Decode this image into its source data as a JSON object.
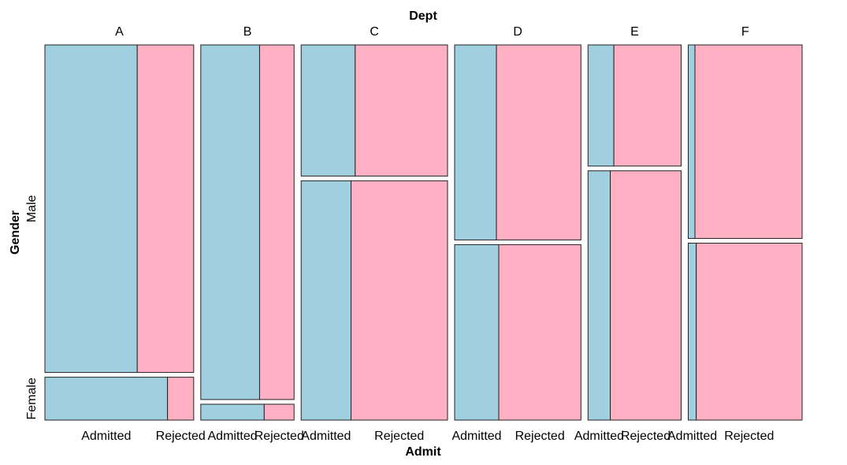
{
  "chart_data": {
    "type": "mosaic",
    "title": "Dept",
    "xlabel": "Admit",
    "ylabel": "Gender",
    "departments": [
      "A",
      "B",
      "C",
      "D",
      "E",
      "F"
    ],
    "genders": [
      "Male",
      "Female"
    ],
    "admit_levels": [
      "Admitted",
      "Rejected"
    ],
    "colors": {
      "Admitted": "#a0d0e0",
      "Rejected": "#ffb0c2"
    },
    "counts": {
      "A": {
        "Male": {
          "Admitted": 512,
          "Rejected": 313
        },
        "Female": {
          "Admitted": 89,
          "Rejected": 19
        }
      },
      "B": {
        "Male": {
          "Admitted": 353,
          "Rejected": 207
        },
        "Female": {
          "Admitted": 17,
          "Rejected": 8
        }
      },
      "C": {
        "Male": {
          "Admitted": 120,
          "Rejected": 205
        },
        "Female": {
          "Admitted": 202,
          "Rejected": 391
        }
      },
      "D": {
        "Male": {
          "Admitted": 138,
          "Rejected": 279
        },
        "Female": {
          "Admitted": 131,
          "Rejected": 244
        }
      },
      "E": {
        "Male": {
          "Admitted": 53,
          "Rejected": 138
        },
        "Female": {
          "Admitted": 94,
          "Rejected": 299
        }
      },
      "F": {
        "Male": {
          "Admitted": 22,
          "Rejected": 351
        },
        "Female": {
          "Admitted": 24,
          "Rejected": 317
        }
      }
    }
  }
}
